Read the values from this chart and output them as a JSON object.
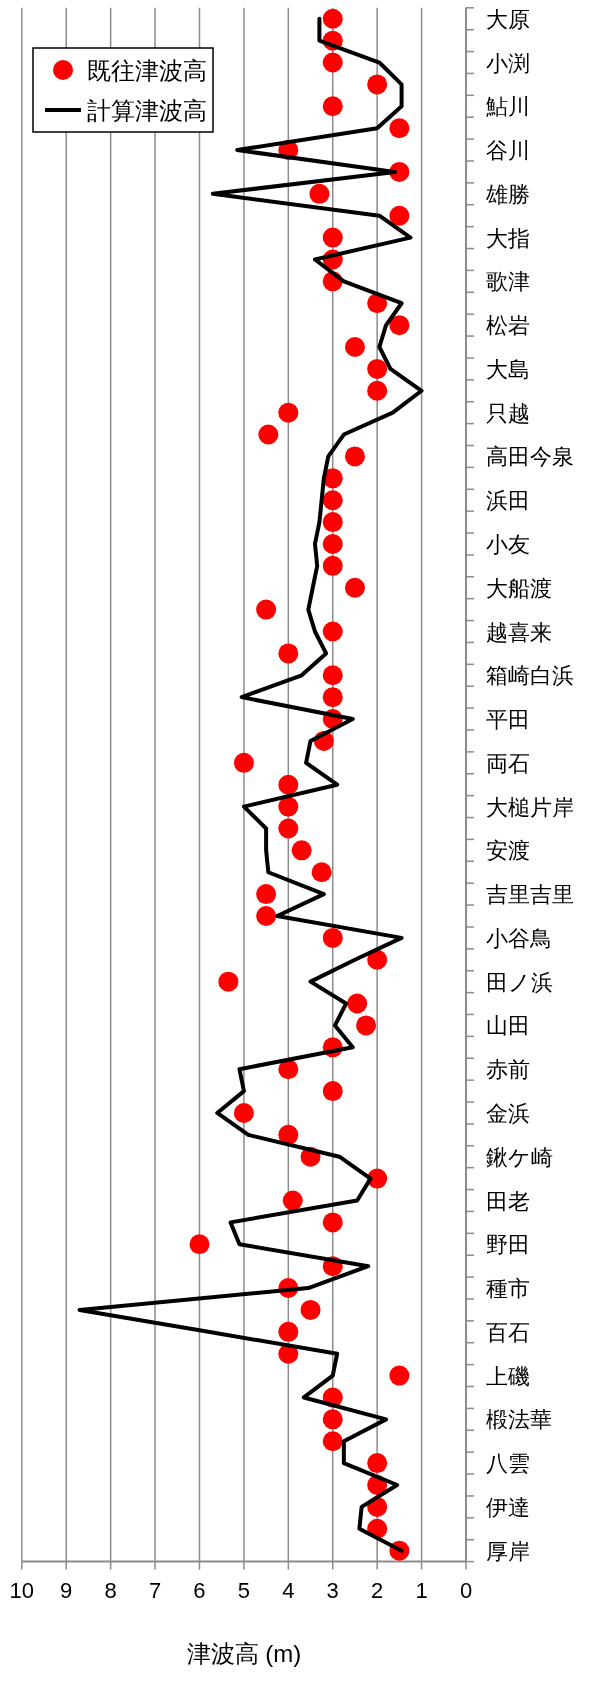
{
  "chart_data": {
    "type": "line",
    "orientation": "horizontal",
    "xlabel": "津波高 (m)",
    "categories": [
      "大原",
      null,
      "小渕",
      null,
      "鮎川",
      null,
      "谷川",
      null,
      "雄勝",
      null,
      "大指",
      null,
      "歌津",
      null,
      "松岩",
      null,
      "大島",
      null,
      "只越",
      null,
      "高田今泉",
      null,
      "浜田",
      null,
      "小友",
      null,
      "大船渡",
      null,
      "越喜来",
      null,
      "箱崎白浜",
      null,
      "平田",
      null,
      "両石",
      null,
      "大槌片岸",
      null,
      "安渡",
      null,
      "吉里吉里",
      null,
      "小谷鳥",
      null,
      "田ノ浜",
      null,
      "山田",
      null,
      "赤前",
      null,
      "金浜",
      null,
      "鍬ケ崎",
      null,
      "田老",
      null,
      "野田",
      null,
      "種市",
      null,
      "百石",
      null,
      "上磯",
      null,
      "椴法華",
      null,
      "八雲",
      null,
      "伊達",
      null,
      "厚岸"
    ],
    "series": [
      {
        "name": "既往津波高",
        "type": "scatter",
        "marker": "circle",
        "color": "#ff0000",
        "values": [
          3,
          3,
          3,
          2,
          3,
          1.5,
          4,
          1.5,
          3.3,
          1.5,
          3,
          3,
          3,
          2,
          1.5,
          2.5,
          2,
          2,
          4,
          4.45,
          2.5,
          3,
          3,
          3,
          3,
          3,
          2.5,
          4.5,
          3,
          4,
          3,
          3,
          3,
          3.2,
          5,
          4,
          4,
          4,
          3.7,
          3.25,
          4.5,
          4.5,
          3,
          2,
          5.35,
          2.45,
          2.25,
          3,
          4,
          3,
          5,
          4,
          3.5,
          2,
          3.9,
          3,
          6,
          3,
          4,
          3.5,
          4,
          4,
          1.5,
          3,
          3,
          3,
          2,
          2,
          2,
          2,
          1.5
        ]
      },
      {
        "name": "計算津波高",
        "type": "line",
        "line_style": "solid",
        "color": "#000000",
        "values": [
          3.3,
          3.3,
          1.95,
          1.45,
          1.45,
          2.0,
          5.15,
          1.6,
          5.7,
          1.95,
          1.25,
          3.4,
          2.75,
          1.45,
          1.8,
          1.95,
          1.7,
          1.0,
          1.65,
          2.75,
          3.1,
          3.2,
          3.25,
          3.3,
          3.4,
          3.35,
          3.45,
          3.55,
          3.4,
          3.15,
          3.7,
          5.05,
          2.55,
          3.5,
          3.6,
          2.9,
          5.0,
          4.5,
          4.5,
          4.45,
          3.2,
          4.25,
          1.45,
          2.5,
          3.5,
          2.7,
          2.95,
          2.55,
          5.1,
          5.0,
          5.6,
          4.9,
          2.85,
          2.15,
          2.45,
          5.3,
          5.1,
          2.2,
          3.55,
          8.7,
          5.8,
          2.9,
          3.0,
          3.65,
          1.8,
          2.75,
          2.75,
          1.55,
          2.35,
          2.4,
          1.45
        ]
      }
    ],
    "xlim": [
      10,
      0
    ],
    "xticks": [
      10,
      9,
      8,
      7,
      6,
      5,
      4,
      3,
      2,
      1,
      0
    ],
    "grid": "x",
    "legend": "top left"
  }
}
